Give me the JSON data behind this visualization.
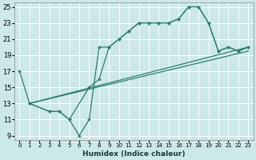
{
  "xlabel": "Humidex (Indice chaleur)",
  "xlim": [
    -0.5,
    23.5
  ],
  "ylim": [
    8.5,
    25.5
  ],
  "xticks": [
    0,
    1,
    2,
    3,
    4,
    5,
    6,
    7,
    8,
    9,
    10,
    11,
    12,
    13,
    14,
    15,
    16,
    17,
    18,
    19,
    20,
    21,
    22,
    23
  ],
  "yticks": [
    9,
    11,
    13,
    15,
    17,
    19,
    21,
    23,
    25
  ],
  "bg_color": "#cce8e8",
  "line_color": "#2d7d72",
  "grid_color": "#b8d8d8",
  "lines": [
    {
      "x": [
        0,
        1,
        3,
        4,
        5,
        6,
        7,
        8,
        9,
        10,
        11,
        12,
        13,
        14,
        15,
        16,
        17,
        18,
        19,
        20,
        21,
        22,
        23
      ],
      "y": [
        17,
        13,
        12,
        12,
        11,
        9,
        11,
        20,
        20,
        21,
        22,
        23,
        23,
        23,
        23,
        23.5,
        25,
        25,
        23,
        19.5,
        20,
        19.5,
        20
      ]
    },
    {
      "x": [
        1,
        3,
        4,
        5,
        7,
        8,
        9,
        10,
        11,
        12,
        13,
        14,
        15,
        16,
        17,
        18,
        19,
        20,
        21,
        22,
        23
      ],
      "y": [
        13,
        12,
        12,
        11,
        15,
        16,
        20,
        21,
        22,
        23,
        23,
        23,
        23,
        23.5,
        25,
        25,
        23,
        19.5,
        20,
        19.5,
        20
      ]
    },
    {
      "x": [
        1,
        23
      ],
      "y": [
        13,
        20
      ]
    },
    {
      "x": [
        1,
        23
      ],
      "y": [
        13,
        19.5
      ]
    }
  ]
}
